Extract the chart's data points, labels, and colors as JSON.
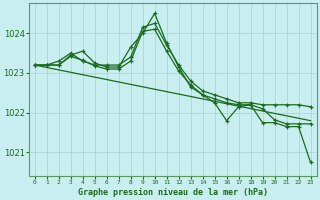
{
  "title": "Graphe pression niveau de la mer (hPa)",
  "bg_color": "#c8eef0",
  "grid_color": "#a8cfd4",
  "line_color": "#1a6b1a",
  "border_color": "#5a9a5a",
  "xlim": [
    -0.5,
    23.5
  ],
  "ylim": [
    1020.4,
    1024.75
  ],
  "yticks": [
    1021,
    1022,
    1023,
    1024
  ],
  "xticks": [
    0,
    1,
    2,
    3,
    4,
    5,
    6,
    7,
    8,
    9,
    10,
    11,
    12,
    13,
    14,
    15,
    16,
    17,
    18,
    19,
    20,
    21,
    22,
    23
  ],
  "lines": [
    {
      "x": [
        0,
        1,
        2,
        3,
        4,
        5,
        6,
        7,
        8,
        9,
        10,
        11,
        12,
        13,
        14,
        15,
        16,
        17,
        18,
        19,
        20,
        21,
        22,
        23
      ],
      "y": [
        1023.2,
        1023.2,
        1023.2,
        1023.45,
        1023.55,
        1023.25,
        1023.15,
        1023.15,
        1023.65,
        1024.0,
        1024.5,
        1023.75,
        1023.15,
        1022.65,
        1022.45,
        1022.25,
        1021.8,
        1022.15,
        1022.2,
        1021.75,
        1021.75,
        1021.65,
        1021.65,
        1020.75
      ]
    },
    {
      "x": [
        0,
        1,
        2,
        3,
        4,
        5,
        6,
        7,
        8,
        9,
        10,
        11,
        12,
        13,
        14,
        15,
        16,
        17,
        18,
        19,
        20,
        21,
        22,
        23
      ],
      "y": [
        1023.2,
        1023.2,
        1023.3,
        1023.5,
        1023.3,
        1023.2,
        1023.2,
        1023.2,
        1023.4,
        1024.15,
        1024.25,
        1023.7,
        1023.2,
        1022.8,
        1022.55,
        1022.45,
        1022.35,
        1022.25,
        1022.25,
        1022.2,
        1022.2,
        1022.2,
        1022.2,
        1022.15
      ]
    },
    {
      "x": [
        0,
        1,
        2,
        3,
        4,
        5,
        6,
        7,
        8,
        9,
        10,
        11,
        12,
        13,
        14,
        15,
        16,
        17,
        18,
        19,
        20,
        21,
        22,
        23
      ],
      "y": [
        1023.2,
        1023.2,
        1023.2,
        1023.42,
        1023.32,
        1023.18,
        1023.1,
        1023.1,
        1023.3,
        1024.05,
        1024.1,
        1023.55,
        1023.05,
        1022.7,
        1022.45,
        1022.35,
        1022.25,
        1022.2,
        1022.2,
        1022.1,
        1021.82,
        1021.72,
        1021.72,
        1021.72
      ]
    },
    {
      "x": [
        0,
        23
      ],
      "y": [
        1023.2,
        1021.8
      ]
    }
  ]
}
